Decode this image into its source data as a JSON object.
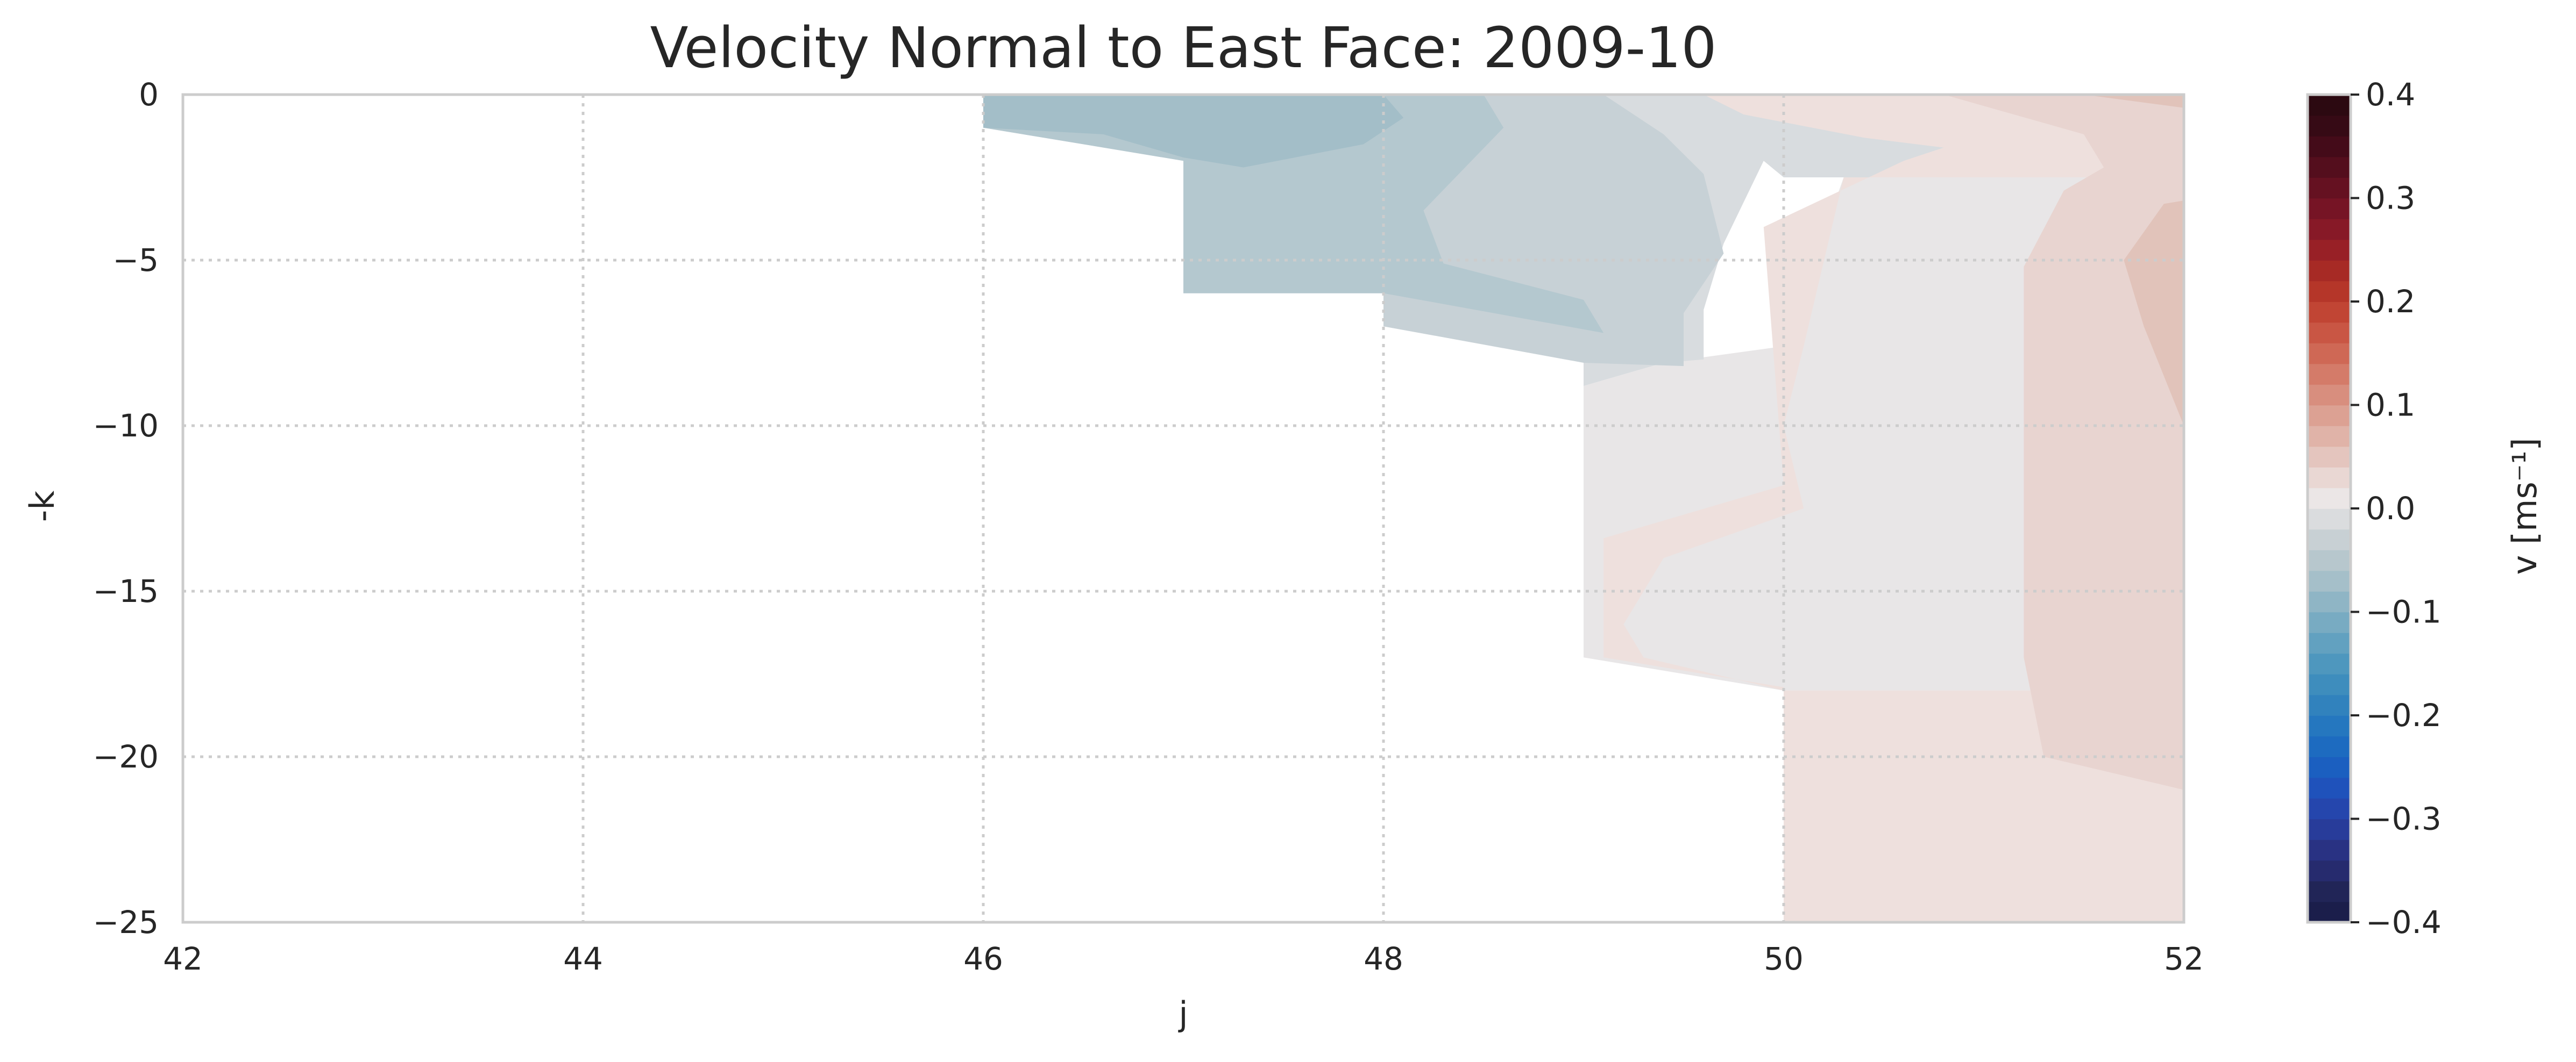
{
  "chart_data": {
    "type": "heatmap",
    "title": "Velocity Normal to East Face: 2009-10",
    "xlabel": "j",
    "ylabel": "-k",
    "xlim": [
      42,
      52
    ],
    "ylim": [
      -25,
      0
    ],
    "x_ticks": [
      42,
      44,
      46,
      48,
      50,
      52
    ],
    "x_tick_labels": [
      "42",
      "44",
      "46",
      "48",
      "50",
      "52"
    ],
    "y_ticks": [
      0,
      -5,
      -10,
      -15,
      -20,
      -25
    ],
    "y_tick_labels": [
      "0",
      "−5",
      "−10",
      "−15",
      "−20",
      "−25"
    ],
    "grid": true,
    "colormap": "balance",
    "colorbar": {
      "label": "v [ms⁻¹]",
      "range": [
        -0.4,
        0.4
      ],
      "ticks": [
        0.4,
        0.3,
        0.2,
        0.1,
        0.0,
        -0.1,
        -0.2,
        -0.3,
        -0.4
      ],
      "tick_labels": [
        "0.4",
        "0.3",
        "0.2",
        "0.1",
        "0.0",
        "−0.1",
        "−0.2",
        "−0.3",
        "−0.4"
      ],
      "levels": [
        {
          "min": -0.4,
          "color": "#1b1e4b"
        },
        {
          "min": -0.38,
          "color": "#212557"
        },
        {
          "min": -0.36,
          "color": "#262b6e"
        },
        {
          "min": -0.34,
          "color": "#293283"
        },
        {
          "min": -0.32,
          "color": "#283c9a"
        },
        {
          "min": -0.3,
          "color": "#2546ad"
        },
        {
          "min": -0.28,
          "color": "#1f52bb"
        },
        {
          "min": -0.26,
          "color": "#1b5fc0"
        },
        {
          "min": -0.24,
          "color": "#1d6bc0"
        },
        {
          "min": -0.22,
          "color": "#2577bf"
        },
        {
          "min": -0.2,
          "color": "#3182bd"
        },
        {
          "min": -0.18,
          "color": "#3e8dbd"
        },
        {
          "min": -0.16,
          "color": "#4e97be"
        },
        {
          "min": -0.14,
          "color": "#62a1c0"
        },
        {
          "min": -0.12,
          "color": "#78abc2"
        },
        {
          "min": -0.1,
          "color": "#8fb5c5"
        },
        {
          "min": -0.08,
          "color": "#a5bfc9"
        },
        {
          "min": -0.06,
          "color": "#b7c7cd"
        },
        {
          "min": -0.04,
          "color": "#c8d0d4"
        },
        {
          "min": -0.02,
          "color": "#dadcde"
        },
        {
          "min": 0.0,
          "color": "#ebe6e6"
        },
        {
          "min": 0.02,
          "color": "#e9d7d3"
        },
        {
          "min": 0.04,
          "color": "#e4c5be"
        },
        {
          "min": 0.06,
          "color": "#e0b3a8"
        },
        {
          "min": 0.08,
          "color": "#dca193"
        },
        {
          "min": 0.1,
          "color": "#d88e7e"
        },
        {
          "min": 0.12,
          "color": "#d47b69"
        },
        {
          "min": 0.14,
          "color": "#cf6855"
        },
        {
          "min": 0.16,
          "color": "#c95644"
        },
        {
          "min": 0.18,
          "color": "#c14534"
        },
        {
          "min": 0.2,
          "color": "#b53629"
        },
        {
          "min": 0.22,
          "color": "#a72a25"
        },
        {
          "min": 0.24,
          "color": "#982026"
        },
        {
          "min": 0.26,
          "color": "#871927"
        },
        {
          "min": 0.28,
          "color": "#761425"
        },
        {
          "min": 0.3,
          "color": "#651121"
        },
        {
          "min": 0.32,
          "color": "#540e1d"
        },
        {
          "min": 0.34,
          "color": "#440b19"
        },
        {
          "min": 0.36,
          "color": "#360a15"
        },
        {
          "min": 0.38,
          "color": "#2c0911"
        }
      ]
    },
    "regions": [
      {
        "name": "positive-deep-base",
        "value": 0.01,
        "color": "#eee5e3",
        "points": [
          [
            50,
            -18
          ],
          [
            52,
            -18
          ],
          [
            52,
            -25
          ],
          [
            50,
            -25
          ]
        ]
      },
      {
        "name": "near-zero-band",
        "value": 0.0,
        "color": "#e8e6e7",
        "points": [
          [
            49,
            -8.8
          ],
          [
            49.4,
            -8.1
          ],
          [
            50,
            -7.6
          ],
          [
            50.3,
            -2.5
          ],
          [
            52,
            -2.5
          ],
          [
            52,
            -18
          ],
          [
            50,
            -18
          ],
          [
            49,
            -17
          ]
        ]
      },
      {
        "name": "weak-negative-upper",
        "value": -0.03,
        "color": "#d8dcdf",
        "points": [
          [
            48.8,
            0
          ],
          [
            52,
            0
          ],
          [
            52,
            -2.5
          ],
          [
            50,
            -2.5
          ],
          [
            49.9,
            -2
          ],
          [
            49.7,
            -4.5
          ],
          [
            49.6,
            -6.5
          ],
          [
            49.6,
            -8
          ],
          [
            49.4,
            -8.1
          ],
          [
            49,
            -8.8
          ],
          [
            49,
            -6.3
          ]
        ]
      },
      {
        "name": "negative-shelf",
        "value": -0.06,
        "color": "#c7d1d6",
        "points": [
          [
            46,
            0
          ],
          [
            49.1,
            0
          ],
          [
            49.4,
            -1.2
          ],
          [
            49.6,
            -2.4
          ],
          [
            49.7,
            -4.8
          ],
          [
            49.5,
            -6.6
          ],
          [
            49.5,
            -8.2
          ],
          [
            49.0,
            -8.1
          ],
          [
            48,
            -7.0
          ],
          [
            48,
            -6
          ],
          [
            47,
            -6
          ],
          [
            47,
            -2
          ],
          [
            46,
            -1
          ]
        ]
      },
      {
        "name": "negative-mid",
        "value": -0.08,
        "color": "#b4c8cf",
        "points": [
          [
            46,
            0
          ],
          [
            48.5,
            0
          ],
          [
            48.6,
            -1
          ],
          [
            48.2,
            -3.5
          ],
          [
            48.3,
            -5.1
          ],
          [
            49,
            -6.2
          ],
          [
            49.1,
            -7.2
          ],
          [
            48,
            -6
          ],
          [
            47,
            -6
          ],
          [
            47,
            -2
          ],
          [
            46,
            -1
          ]
        ]
      },
      {
        "name": "negative-core",
        "value": -0.1,
        "color": "#a3bec8",
        "points": [
          [
            46,
            0
          ],
          [
            48,
            0
          ],
          [
            48.1,
            -0.7
          ],
          [
            47.9,
            -1.5
          ],
          [
            47.3,
            -2.2
          ],
          [
            47,
            -1.9
          ],
          [
            46.6,
            -1.2
          ],
          [
            46,
            -1
          ]
        ]
      },
      {
        "name": "positive-wedge-mid",
        "value": 0.02,
        "color": "#eee0dd",
        "points": [
          [
            49.6,
            0
          ],
          [
            52,
            0
          ],
          [
            52,
            -2.5
          ],
          [
            50.3,
            -2.5
          ],
          [
            50.1,
            -7.6
          ],
          [
            50,
            -10
          ],
          [
            50.1,
            -12.5
          ],
          [
            49.4,
            -14
          ],
          [
            49.2,
            -16
          ],
          [
            49.3,
            -17
          ],
          [
            50,
            -18
          ],
          [
            52,
            -18
          ],
          [
            52,
            -25
          ],
          [
            50,
            -25
          ],
          [
            50,
            -17.9
          ],
          [
            49.1,
            -17
          ],
          [
            49.1,
            -13.4
          ],
          [
            50,
            -11.8
          ],
          [
            49.9,
            -4
          ],
          [
            50.6,
            -2
          ],
          [
            50.8,
            -1.6
          ],
          [
            50.4,
            -1.3
          ],
          [
            49.8,
            -0.6
          ]
        ]
      },
      {
        "name": "positive-east",
        "value": 0.04,
        "color": "#e8d4d0",
        "points": [
          [
            50.8,
            0
          ],
          [
            52,
            0
          ],
          [
            52,
            -21
          ],
          [
            51.3,
            -20
          ],
          [
            51.2,
            -17
          ],
          [
            51.2,
            -5.2
          ],
          [
            51.4,
            -2.9
          ],
          [
            51.6,
            -2.2
          ],
          [
            51.5,
            -1.2
          ]
        ]
      },
      {
        "name": "positive-east-core",
        "value": 0.06,
        "color": "#e1c3ba",
        "points": [
          [
            51.5,
            0
          ],
          [
            52,
            0
          ],
          [
            52,
            -10
          ],
          [
            51.8,
            -7
          ],
          [
            51.7,
            -5
          ],
          [
            51.9,
            -3.3
          ],
          [
            52,
            -3.2
          ],
          [
            52,
            -0.4
          ]
        ]
      }
    ]
  }
}
